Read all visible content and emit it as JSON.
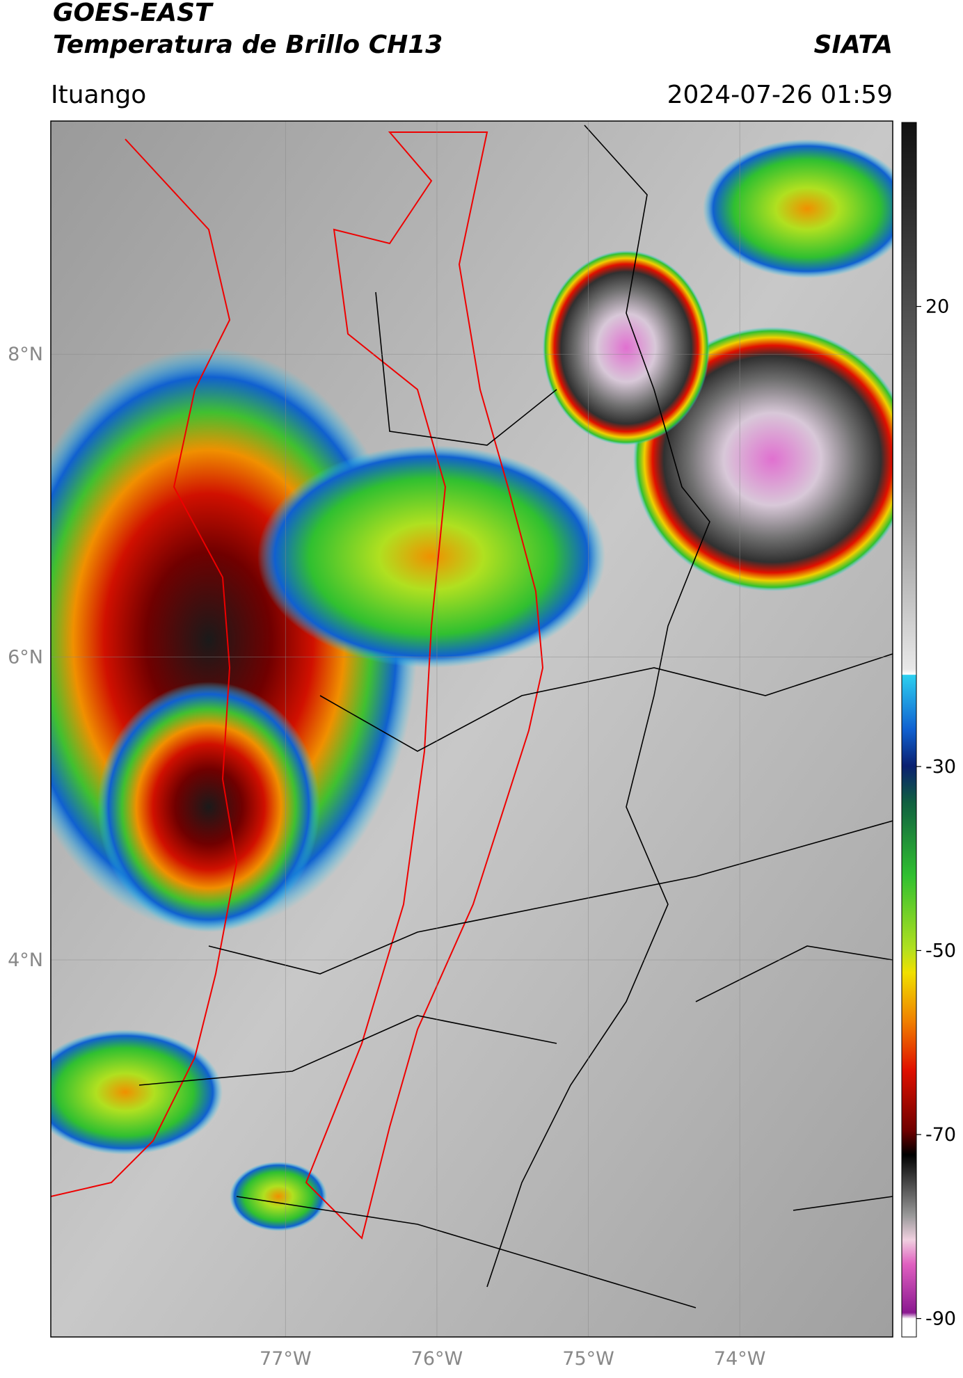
{
  "header": {
    "title": "GOES-EAST",
    "subtitle": "Temperatura de Brillo CH13",
    "brand": "SIATA",
    "location": "Ituango",
    "datetime": "2024-07-26 01:59"
  },
  "map": {
    "lonlim": [
      -78.55,
      -72.99
    ],
    "latlim": [
      1.51,
      9.54
    ],
    "lonticks": [
      {
        "value": -77,
        "label": "77°W"
      },
      {
        "value": -76,
        "label": "76°W"
      },
      {
        "value": -75,
        "label": "75°W"
      },
      {
        "value": -74,
        "label": "74°W"
      }
    ],
    "latticks": [
      {
        "value": 8,
        "label": "8°N"
      },
      {
        "value": 6,
        "label": "6°N"
      },
      {
        "value": 4,
        "label": "4°N"
      }
    ]
  },
  "colorbar": {
    "lim": [
      -92,
      40
    ],
    "ticks": [
      20,
      -30,
      -50,
      -70,
      -90
    ]
  }
}
